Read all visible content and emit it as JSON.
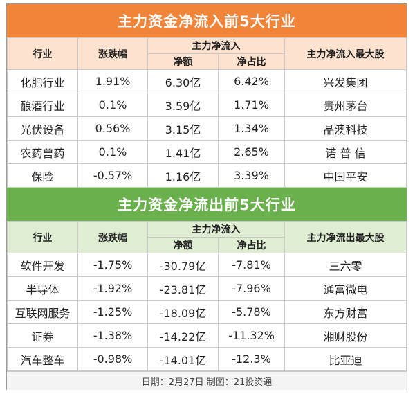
{
  "inflow": {
    "title": "主力资金净流入前5大行业",
    "headers": {
      "industry": "行业",
      "change": "涨跌幅",
      "group": "主力净流入",
      "amount": "净额",
      "ratio": "净占比",
      "top_stock": "主力净流入最大股"
    },
    "rows": [
      {
        "industry": "化肥行业",
        "change": "1.91%",
        "amount": "6.30亿",
        "ratio": "6.42%",
        "stock": "兴发集团"
      },
      {
        "industry": "酿酒行业",
        "change": "0.1%",
        "amount": "3.59亿",
        "ratio": "1.71%",
        "stock": "贵州茅台"
      },
      {
        "industry": "光伏设备",
        "change": "0.56%",
        "amount": "3.15亿",
        "ratio": "1.34%",
        "stock": "晶澳科技"
      },
      {
        "industry": "农药兽药",
        "change": "0.1%",
        "amount": "1.41亿",
        "ratio": "2.65%",
        "stock": "诺 普 信"
      },
      {
        "industry": "保险",
        "change": "-0.57%",
        "amount": "1.16亿",
        "ratio": "3.39%",
        "stock": "中国平安"
      }
    ]
  },
  "outflow": {
    "title": "主力资金净流出前5大行业",
    "headers": {
      "industry": "行业",
      "change": "涨跌幅",
      "group": "主力净流入",
      "amount": "净额",
      "ratio": "净占比",
      "top_stock": "主力净流出最大股"
    },
    "rows": [
      {
        "industry": "软件开发",
        "change": "-1.75%",
        "amount": "-30.79亿",
        "ratio": "-7.81%",
        "stock": "三六零"
      },
      {
        "industry": "半导体",
        "change": "-1.92%",
        "amount": "-23.81亿",
        "ratio": "-7.96%",
        "stock": "通富微电"
      },
      {
        "industry": "互联网服务",
        "change": "-1.25%",
        "amount": "-18.09亿",
        "ratio": "-5.78%",
        "stock": "东方财富"
      },
      {
        "industry": "证券",
        "change": "-1.38%",
        "amount": "-14.22亿",
        "ratio": "-11.32%",
        "stock": "湘财股份"
      },
      {
        "industry": "汽车整车",
        "change": "-0.98%",
        "amount": "-14.01亿",
        "ratio": "-12.3%",
        "stock": "比亚迪"
      }
    ]
  },
  "footer": "日期：2月27日 制图：21投资通",
  "colors": {
    "inflow_accent": "#f0853a",
    "outflow_accent": "#6ab04c"
  }
}
